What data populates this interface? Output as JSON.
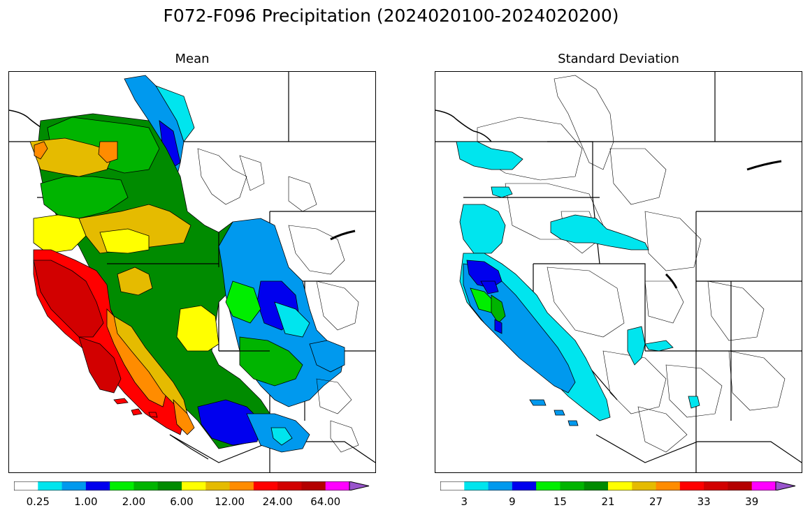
{
  "figure": {
    "title": "F072-F096 Precipitation (2024020100-2024020200)"
  },
  "panels": [
    {
      "id": "mean",
      "title": "Mean",
      "colorbar": {
        "ticks": [
          "0.25",
          "1.00",
          "2.00",
          "6.00",
          "12.00",
          "24.00",
          "64.00"
        ],
        "colors": [
          "#ffffff",
          "#00e5ee",
          "#0099ee",
          "#0000ee",
          "#00ee00",
          "#00b400",
          "#008b00",
          "#ffff00",
          "#e5bb00",
          "#ff8c00",
          "#ff0000",
          "#d20000",
          "#b40000",
          "#ff00ff",
          "#9955cc"
        ],
        "extend": "max"
      }
    },
    {
      "id": "std",
      "title": "Standard Deviation",
      "colorbar": {
        "ticks": [
          "3",
          "9",
          "15",
          "21",
          "27",
          "33",
          "39"
        ],
        "colors": [
          "#ffffff",
          "#00e5ee",
          "#0099ee",
          "#0000ee",
          "#00ee00",
          "#00b400",
          "#008b00",
          "#ffff00",
          "#e5bb00",
          "#ff8c00",
          "#ff0000",
          "#d20000",
          "#b40000",
          "#ff00ff",
          "#9955cc"
        ],
        "extend": "max"
      }
    }
  ],
  "region": "Western United States river basins"
}
